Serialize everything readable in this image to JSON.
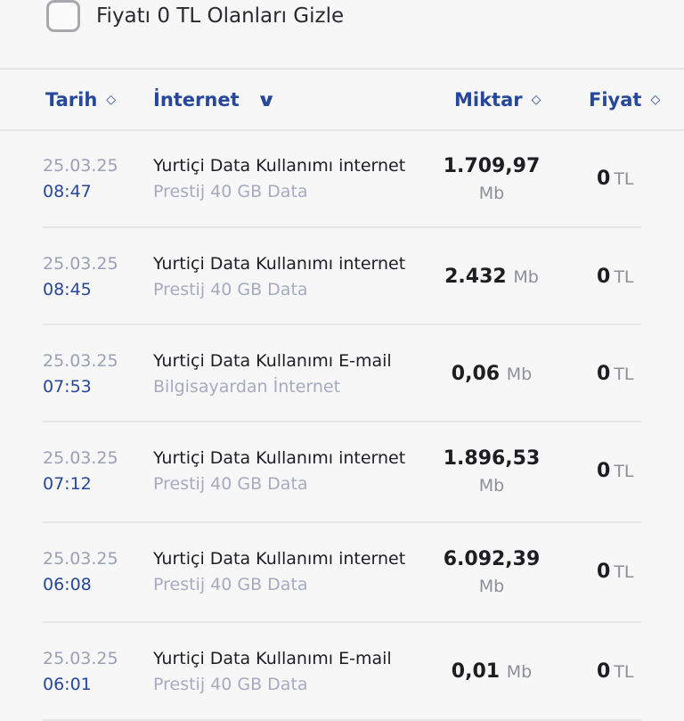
{
  "filter": {
    "label": "Fiyatı 0 TL Olanları Gizle",
    "checked": false
  },
  "header": {
    "date": "Tarih",
    "type": "İnternet",
    "amount": "Miktar",
    "price": "Fiyat"
  },
  "rows": [
    {
      "date": "25.03.25",
      "time": "08:47",
      "title": "Yurtiçi Data Kullanımı internet",
      "subtitle": "Prestij 40 GB Data",
      "amount": "1.709,97",
      "amount_unit": "Mb",
      "price": "0",
      "price_unit": "TL"
    },
    {
      "date": "25.03.25",
      "time": "08:45",
      "title": "Yurtiçi Data Kullanımı internet",
      "subtitle": "Prestij 40 GB Data",
      "amount": "2.432",
      "amount_unit": "Mb",
      "price": "0",
      "price_unit": "TL"
    },
    {
      "date": "25.03.25",
      "time": "07:53",
      "title": "Yurtiçi Data Kullanımı E-mail",
      "subtitle": "Bilgisayardan İnternet",
      "amount": "0,06",
      "amount_unit": "Mb",
      "price": "0",
      "price_unit": "TL"
    },
    {
      "date": "25.03.25",
      "time": "07:12",
      "title": "Yurtiçi Data Kullanımı internet",
      "subtitle": "Prestij 40 GB Data",
      "amount": "1.896,53",
      "amount_unit": "Mb",
      "price": "0",
      "price_unit": "TL"
    },
    {
      "date": "25.03.25",
      "time": "06:08",
      "title": "Yurtiçi Data Kullanımı internet",
      "subtitle": "Prestij 40 GB Data",
      "amount": "6.092,39",
      "amount_unit": "Mb",
      "price": "0",
      "price_unit": "TL"
    },
    {
      "date": "25.03.25",
      "time": "06:01",
      "title": "Yurtiçi Data Kullanımı E-mail",
      "subtitle": "Prestij 40 GB Data",
      "amount": "0,01",
      "amount_unit": "Mb",
      "price": "0",
      "price_unit": "TL"
    }
  ]
}
